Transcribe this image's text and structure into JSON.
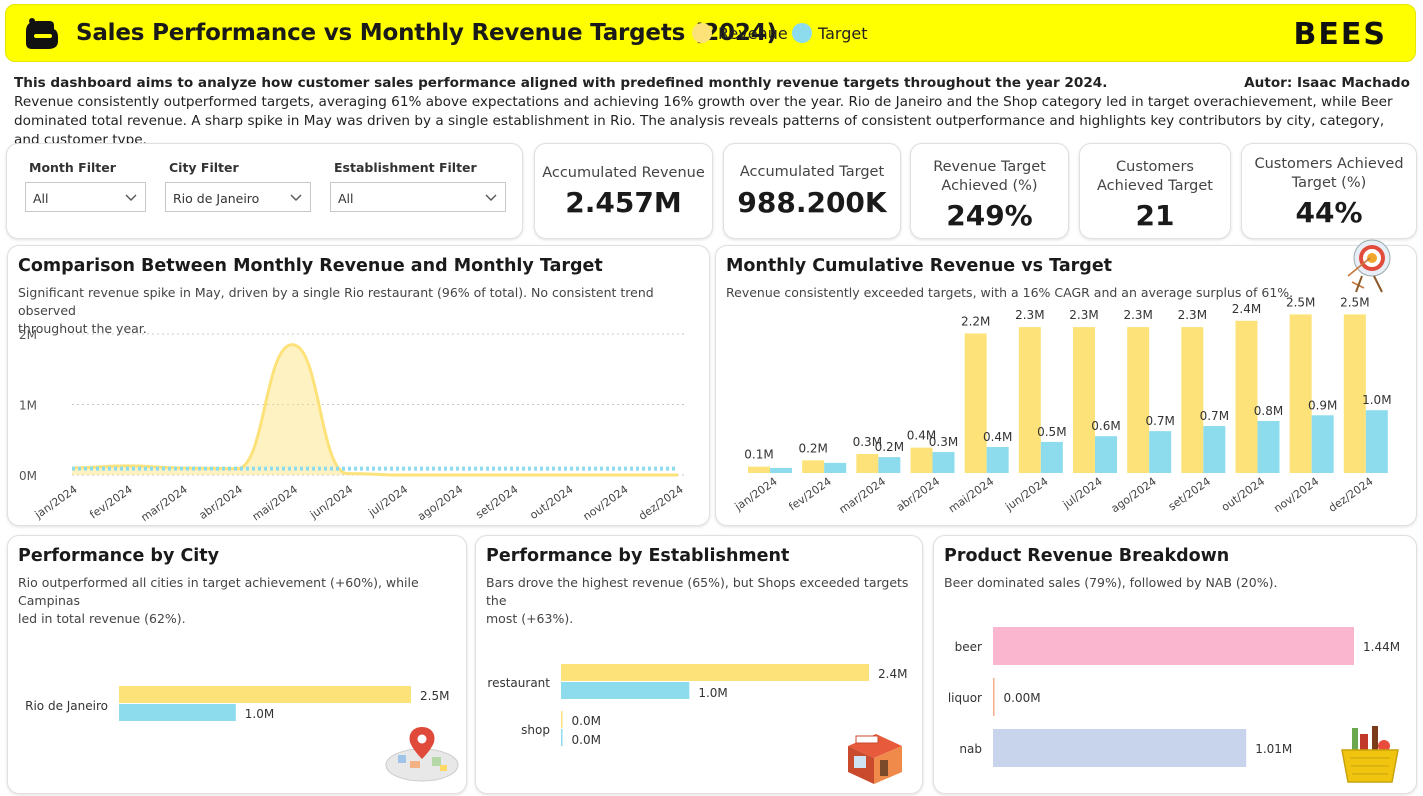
{
  "header": {
    "title": "Sales Performance vs Monthly Revenue Targets (2024)",
    "legend": [
      {
        "label": "Revenue",
        "color": "#fde27a"
      },
      {
        "label": "Target",
        "color": "#8ddcee"
      }
    ],
    "brand": "BEES"
  },
  "intro": {
    "title": "This dashboard aims to analyze how customer sales performance aligned with predefined monthly revenue targets throughout the year 2024.",
    "author": "Autor: Isaac Machado",
    "body": "Revenue consistently outperformed targets, averaging 61% above expectations and achieving 16% growth over the year. Rio de Janeiro and the Shop category led in target overachievement, while Beer dominated total revenue. A sharp spike in May was driven by a single establishment in Rio. The analysis reveals patterns of consistent outperformance and highlights key contributors by city, category, and customer type."
  },
  "filters": {
    "month": {
      "label": "Month Filter",
      "value": "All"
    },
    "city": {
      "label": "City Filter",
      "value": "Rio de Janeiro"
    },
    "establishment": {
      "label": "Establishment Filter",
      "value": "All"
    }
  },
  "kpis": {
    "accumulated_revenue": {
      "label": "Accumulated Revenue",
      "value": "2.457M"
    },
    "accumulated_target": {
      "label": "Accumulated Target",
      "value": "988.200K"
    },
    "revenue_target_pct": {
      "label1": "Revenue Target",
      "label2": "Achieved (%)",
      "value": "249%"
    },
    "customers_achieved": {
      "label1": "Customers",
      "label2": "Achieved Target",
      "value": "21"
    },
    "customers_achieved_pct": {
      "label1": "Customers Achieved",
      "label2": "Target (%)",
      "value": "44%"
    }
  },
  "monthly_comparison": {
    "title": "Comparison Between Monthly Revenue and Monthly Target",
    "subtitle1": "Significant revenue spike in May, driven by a single Rio restaurant (96% of total). No consistent trend observed",
    "subtitle2": "throughout the year."
  },
  "cumulative": {
    "title": "Monthly Cumulative Revenue vs Target",
    "subtitle": "Revenue consistently exceeded targets, with a 16% CAGR and an average surplus of 61%."
  },
  "city": {
    "title": "Performance by City",
    "subtitle1": "Rio outperformed all cities in target achievement (+60%), while Campinas",
    "subtitle2": "led in total revenue (62%)."
  },
  "establishment": {
    "title": "Performance by Establishment",
    "subtitle1": "Bars drove the highest revenue (65%), but Shops exceeded targets the",
    "subtitle2": "most (+63%)."
  },
  "product": {
    "title": "Product Revenue Breakdown",
    "subtitle": "Beer dominated sales (79%), followed by NAB (20%)."
  },
  "chart_data": [
    {
      "type": "area",
      "title": "Comparison Between Monthly Revenue and Monthly Target",
      "categories": [
        "jan/2024",
        "fev/2024",
        "mar/2024",
        "abr/2024",
        "mai/2024",
        "jun/2024",
        "jul/2024",
        "ago/2024",
        "set/2024",
        "out/2024",
        "nov/2024",
        "dez/2024"
      ],
      "series": [
        {
          "name": "Revenue",
          "values": [
            0.1,
            0.13,
            0.1,
            0.09,
            1.85,
            0.02,
            0.0,
            0.0,
            0.0,
            0.0,
            0.0,
            0.0
          ]
        },
        {
          "name": "Target",
          "values": [
            0.09,
            0.09,
            0.09,
            0.09,
            0.09,
            0.09,
            0.09,
            0.09,
            0.09,
            0.09,
            0.09,
            0.09
          ]
        }
      ],
      "yticks": [
        "0M",
        "1M",
        "2M"
      ],
      "ylim": [
        0,
        2
      ]
    },
    {
      "type": "bar",
      "title": "Monthly Cumulative Revenue vs Target",
      "categories": [
        "jan/2024",
        "fev/2024",
        "mar/2024",
        "abr/2024",
        "mai/2024",
        "jun/2024",
        "jul/2024",
        "ago/2024",
        "set/2024",
        "out/2024",
        "nov/2024",
        "dez/2024"
      ],
      "series": [
        {
          "name": "Revenue",
          "values": [
            0.1,
            0.2,
            0.3,
            0.4,
            2.2,
            2.3,
            2.3,
            2.3,
            2.3,
            2.4,
            2.5,
            2.5
          ],
          "labels": [
            "0.1M",
            "0.2M",
            "0.3M",
            "0.4M",
            "2.2M",
            "2.3M",
            "2.3M",
            "2.3M",
            "2.3M",
            "2.4M",
            "2.5M",
            "2.5M"
          ]
        },
        {
          "name": "Target",
          "values": [
            0.08,
            0.16,
            0.25,
            0.33,
            0.41,
            0.49,
            0.58,
            0.66,
            0.74,
            0.82,
            0.91,
            0.99
          ],
          "labels": [
            "",
            "",
            "0.2M",
            "0.3M",
            "0.4M",
            "0.5M",
            "0.6M",
            "0.7M",
            "0.7M",
            "0.8M",
            "0.9M",
            "1.0M"
          ]
        }
      ],
      "ylim": [
        0,
        3.2
      ]
    },
    {
      "type": "bar",
      "title": "Performance by City",
      "categories": [
        "Rio de Janeiro"
      ],
      "series": [
        {
          "name": "Revenue",
          "values": [
            2.5
          ],
          "labels": [
            "2.5M"
          ]
        },
        {
          "name": "Target",
          "values": [
            1.0
          ],
          "labels": [
            "1.0M"
          ]
        }
      ],
      "xlim": [
        0,
        2.5
      ]
    },
    {
      "type": "bar",
      "title": "Performance by Establishment",
      "categories": [
        "restaurant",
        "shop"
      ],
      "series": [
        {
          "name": "Revenue",
          "values": [
            2.4,
            0.0
          ],
          "labels": [
            "2.4M",
            "0.0M"
          ]
        },
        {
          "name": "Target",
          "values": [
            1.0,
            0.0
          ],
          "labels": [
            "1.0M",
            "0.0M"
          ]
        }
      ],
      "xlim": [
        0,
        2.4
      ]
    },
    {
      "type": "bar",
      "title": "Product Revenue Breakdown",
      "categories": [
        "beer",
        "liquor",
        "nab"
      ],
      "values": [
        1.44,
        0.0,
        1.01
      ],
      "labels": [
        "1.44M",
        "0.00M",
        "1.01M"
      ],
      "colors": [
        "#fbb6cf",
        "#f5b08a",
        "#c8d4ec"
      ],
      "xlim": [
        0,
        1.44
      ]
    }
  ]
}
